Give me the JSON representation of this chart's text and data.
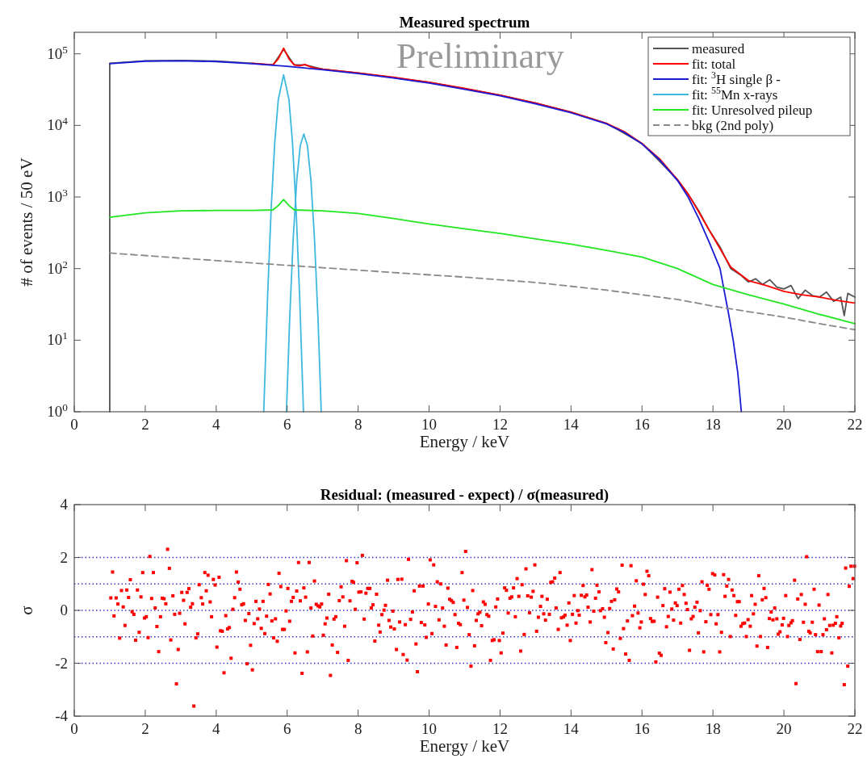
{
  "chart_data": [
    {
      "type": "line",
      "title": "Measured spectrum",
      "xlabel": "Energy / keV",
      "ylabel": "# of events / 50 eV",
      "log": "y",
      "legend": "top right",
      "xlim": [
        0,
        22
      ],
      "xticks": [
        0,
        2,
        4,
        6,
        8,
        10,
        12,
        14,
        16,
        18,
        20,
        22
      ],
      "ylim": [
        1,
        200000
      ],
      "yticks": [
        {
          "value": 1,
          "label": "10$^{0}$"
        },
        {
          "value": 10,
          "label": "10$^{1}$"
        },
        {
          "value": 100,
          "label": "10$^{2}$"
        },
        {
          "value": 1000,
          "label": "10$^{3}$"
        },
        {
          "value": 10000,
          "label": "10$^{4}$"
        },
        {
          "value": 100000,
          "label": "10$^{5}$"
        }
      ],
      "annotations": [
        "Preliminary"
      ],
      "series": [
        {
          "name": "measured",
          "color": "#555555",
          "x": [
            1,
            1,
            2,
            3,
            4,
            5,
            5.6,
            5.9,
            6.2,
            6.5,
            7,
            8,
            10,
            12,
            13,
            14,
            15,
            16,
            17,
            17.3,
            17.6,
            17.9,
            18.2,
            18.5,
            18.8,
            19,
            19.2,
            19.4,
            19.6,
            19.8,
            20,
            20.2,
            20.4,
            20.6,
            20.8,
            21,
            21.2,
            21.4,
            21.6,
            21.7,
            21.8,
            22
          ],
          "values": [
            1,
            74000,
            80000,
            81000,
            79000,
            74000,
            70000,
            115000,
            70000,
            70000,
            61000,
            54000,
            40000,
            26500,
            20500,
            15300,
            10700,
            5600,
            1750,
            1100,
            640,
            340,
            200,
            100,
            80,
            65,
            72,
            60,
            70,
            55,
            52,
            58,
            38,
            50,
            42,
            40,
            47,
            35,
            40,
            22,
            45,
            40
          ]
        },
        {
          "name": "fit: total",
          "color": "#ff0000",
          "x": [
            5,
            5.6,
            5.75,
            5.9,
            6.05,
            6.2,
            6.35,
            6.5,
            6.65,
            6.8,
            7,
            8,
            9,
            10,
            11,
            12,
            13,
            14,
            15,
            15.5,
            16,
            16.5,
            17,
            17.3,
            17.6,
            17.9,
            18.2,
            18.5,
            19,
            19.5,
            20,
            20.5,
            21,
            21.5,
            22
          ],
          "values": [
            74000,
            70000,
            85000,
            120000,
            85000,
            70000,
            68000,
            71000,
            66000,
            63000,
            61000,
            54000,
            47000,
            40000,
            33000,
            26500,
            20500,
            15300,
            10700,
            8200,
            5600,
            3400,
            1750,
            1100,
            620,
            340,
            190,
            105,
            68,
            58,
            48,
            43,
            40,
            36,
            33
          ]
        },
        {
          "name": "fit: $^{3}$H single β -",
          "color": "#1a1ad6",
          "x": [
            1,
            2,
            3,
            4,
            5,
            6,
            7,
            8,
            9,
            10,
            11,
            12,
            13,
            14,
            15,
            15.5,
            16,
            16.5,
            17,
            17.3,
            17.6,
            17.9,
            18.2,
            18.3,
            18.45,
            18.57,
            18.7,
            18.8
          ],
          "values": [
            73000,
            79000,
            80000,
            78000,
            73000,
            67000,
            60000,
            53000,
            46000,
            39000,
            32000,
            26000,
            20000,
            15000,
            10500,
            8000,
            5500,
            3300,
            1700,
            1000,
            500,
            230,
            100,
            54,
            22,
            10,
            3.5,
            1
          ]
        },
        {
          "name": "fit: $^{55}$Mn x-rays",
          "color": "#3fb8e0",
          "x": [
            5.34,
            5.45,
            5.55,
            5.65,
            5.75,
            5.9,
            6.05,
            6.15,
            6.25,
            6.35,
            6.46
          ],
          "values": [
            1,
            43,
            700,
            5750,
            23000,
            51000,
            23000,
            5750,
            700,
            43,
            1
          ]
        },
        {
          "color": "#3fb8e0",
          "x": [
            5.98,
            6.07,
            6.17,
            6.27,
            6.37,
            6.47,
            6.57,
            6.67,
            6.77,
            6.87,
            6.96
          ],
          "values": [
            1,
            19.5,
            263,
            1700,
            5250,
            7600,
            5250,
            1700,
            263,
            19.5,
            1
          ]
        },
        {
          "name": "fit: Unresolved pileup",
          "color": "#22e622",
          "x": [
            1,
            2,
            3,
            4,
            5,
            5.6,
            5.75,
            5.9,
            6.05,
            6.2,
            7,
            8,
            9,
            10,
            11,
            12,
            13,
            14,
            15,
            16,
            17,
            18,
            19,
            20,
            21,
            22
          ],
          "values": [
            520,
            600,
            640,
            650,
            650,
            660,
            760,
            920,
            760,
            660,
            640,
            590,
            500,
            420,
            360,
            310,
            260,
            220,
            180,
            145,
            100,
            60,
            43,
            32,
            23,
            17
          ]
        },
        {
          "name": "bkg (2nd poly)",
          "color": "#888888",
          "line_style": "dashed",
          "x": [
            1,
            3,
            5,
            7,
            9,
            11,
            13,
            15,
            17,
            18,
            19,
            20,
            21,
            22
          ],
          "values": [
            165,
            140,
            120,
            103,
            88,
            76,
            64,
            50,
            37,
            30,
            25,
            21,
            17,
            14
          ]
        }
      ]
    },
    {
      "type": "scatter",
      "title": "Residual: (measured - expect) / σ(measured)",
      "xlabel": "Energy / keV",
      "ylabel": "σ",
      "marker": "square",
      "xlim": [
        0,
        22
      ],
      "xticks": [
        0,
        2,
        4,
        6,
        8,
        10,
        12,
        14,
        16,
        18,
        20,
        22
      ],
      "ylim": [
        -4,
        4
      ],
      "yticks": [
        -4,
        -2,
        0,
        2,
        4
      ],
      "ref_lines": [
        {
          "axis": "y",
          "value": 2,
          "color": "#3333cc",
          "line_style": "dotted"
        },
        {
          "axis": "y",
          "value": 1,
          "color": "#3333cc",
          "line_style": "dotted"
        },
        {
          "axis": "y",
          "value": 0,
          "color": "#3333cc",
          "line_style": "dotted"
        },
        {
          "axis": "y",
          "value": -1,
          "color": "#3333cc",
          "line_style": "dotted"
        },
        {
          "axis": "y",
          "value": -2,
          "color": "#3333cc",
          "line_style": "dotted"
        }
      ],
      "series": [
        {
          "color": "#ff0000",
          "x": [
            1.03,
            1.08,
            1.12,
            1.18,
            1.23,
            1.28,
            1.33,
            1.38,
            1.43,
            1.48,
            1.53,
            1.58,
            1.63,
            1.68,
            1.73,
            1.78,
            1.83,
            1.88,
            1.93,
            1.98,
            2.03,
            2.08,
            2.13,
            2.18,
            2.23,
            2.28,
            2.33,
            2.38,
            2.43,
            2.48,
            2.53,
            2.58,
            2.63,
            2.68,
            2.72,
            2.78,
            2.83,
            2.88,
            2.93,
            2.97,
            3.03,
            3.08,
            3.12,
            3.18,
            3.23,
            3.28,
            3.33,
            3.37,
            3.43,
            3.48,
            3.52,
            3.58,
            3.62,
            3.68,
            3.72,
            3.77,
            3.83,
            3.87,
            3.92,
            3.97,
            4.02,
            4.08,
            4.12,
            4.17,
            4.22,
            4.27,
            4.32,
            4.37,
            4.42,
            4.47,
            4.52,
            4.57,
            4.62,
            4.67,
            4.72,
            4.77,
            4.82,
            4.87,
            4.92,
            4.97,
            5.02,
            5.07,
            5.12,
            5.17,
            5.22,
            5.27,
            5.32,
            5.37,
            5.42,
            5.47,
            5.52,
            5.57,
            5.62,
            5.67,
            5.72,
            5.77,
            5.82,
            5.87,
            5.92,
            5.97,
            6.02,
            6.07,
            6.12,
            6.17,
            6.22,
            6.27,
            6.32,
            6.37,
            6.42,
            6.47,
            6.52,
            6.57,
            6.62,
            6.67,
            6.72,
            6.77,
            6.82,
            6.87,
            6.92,
            6.97,
            7.02,
            7.07,
            7.12,
            7.17,
            7.22,
            7.27,
            7.32,
            7.37,
            7.42,
            7.47,
            7.52,
            7.57,
            7.62,
            7.67,
            7.72,
            7.77,
            7.83,
            7.87,
            7.92,
            7.97,
            8.02,
            8.08,
            8.12,
            8.17,
            8.22,
            8.27,
            8.33,
            8.37,
            8.42,
            8.47,
            8.52,
            8.58,
            8.62,
            8.67,
            8.73,
            8.77,
            8.83,
            8.87,
            8.92,
            8.98,
            9.02,
            9.08,
            9.12,
            9.17,
            9.23,
            9.27,
            9.33,
            9.38,
            9.42,
            9.48,
            9.53,
            9.58,
            9.63,
            9.67,
            9.73,
            9.78,
            9.83,
            9.88,
            9.92,
            9.98,
            10.03,
            10.08,
            10.13,
            10.18,
            10.23,
            10.28,
            10.33,
            10.38,
            10.43,
            10.48,
            10.53,
            10.58,
            10.63,
            10.68,
            10.73,
            10.78,
            10.83,
            10.88,
            10.93,
            10.98,
            11.03,
            11.08,
            11.13,
            11.18,
            11.23,
            11.28,
            11.33,
            11.38,
            11.43,
            11.48,
            11.53,
            11.58,
            11.63,
            11.68,
            11.73,
            11.78,
            11.83,
            11.88,
            11.93,
            11.98,
            12.03,
            12.08,
            12.13,
            12.18,
            12.23,
            12.28,
            12.33,
            12.38,
            12.43,
            12.48,
            12.53,
            12.58,
            12.62,
            12.68,
            12.73,
            12.78,
            12.83,
            12.88,
            12.93,
            12.98,
            13.03,
            13.08,
            13.14,
            13.18,
            13.23,
            13.28,
            13.33,
            13.39,
            13.43,
            13.48,
            13.54,
            13.58,
            13.64,
            13.69,
            13.73,
            13.79,
            13.83,
            13.89,
            13.94,
            13.98,
            14.04,
            14.09,
            14.14,
            14.19,
            14.23,
            14.29,
            14.34,
            14.39,
            14.44,
            14.48,
            14.54,
            14.59,
            14.64,
            14.69,
            14.73,
            14.79,
            14.83,
            14.89,
            14.94,
            14.98,
            15.04,
            15.09,
            15.14,
            15.19,
            15.23,
            15.29,
            15.34,
            15.39,
            15.44,
            15.48,
            15.54,
            15.59,
            15.64,
            15.69,
            15.73,
            15.79,
            15.84,
            15.89,
            15.94,
            15.98,
            16.04,
            16.09,
            16.14,
            16.19,
            16.24,
            16.29,
            16.34,
            16.39,
            16.44,
            16.49,
            16.54,
            16.59,
            16.64,
            16.69,
            16.74,
            16.79,
            16.84,
            16.89,
            16.94,
            16.99,
            17.04,
            17.09,
            17.14,
            17.19,
            17.24,
            17.28,
            17.34,
            17.39,
            17.44,
            17.49,
            17.55,
            17.59,
            17.64,
            17.69,
            17.74,
            17.8,
            17.84,
            17.89,
            17.94,
            17.99,
            18.05,
            18.09,
            18.14,
            18.19,
            18.24,
            18.3,
            18.34,
            18.39,
            18.44,
            18.49,
            18.54,
            18.59,
            18.64,
            18.69,
            18.74,
            18.79,
            18.84,
            18.89,
            18.94,
            18.99,
            19.05,
            19.09,
            19.14,
            19.19,
            19.24,
            19.29,
            19.34,
            19.39,
            19.44,
            19.49,
            19.54,
            19.59,
            19.64,
            19.69,
            19.74,
            19.8,
            19.84,
            19.89,
            19.95,
            19.99,
            20.05,
            20.1,
            20.14,
            20.2,
            20.24,
            20.3,
            20.34,
            20.39,
            20.45,
            20.49,
            20.55,
            20.6,
            20.64,
            20.7,
            20.74,
            20.8,
            20.85,
            20.89,
            20.95,
            20.99,
            21.05,
            21.1,
            21.14,
            21.2,
            21.24,
            21.29,
            21.35,
            21.39,
            21.45,
            21.49,
            21.55,
            21.6,
            21.64,
            21.7,
            21.74,
            21.8,
            21.84,
            21.89,
            21.95,
            21.99
          ],
          "values": [
            0.47,
            1.45,
            -0.21,
            0.47,
            0.24,
            -1.05,
            0.75,
            0.13,
            -0.57,
            0.77,
            0.49,
            1.16,
            -0.05,
            -0.15,
            -1.13,
            0.77,
            -0.83,
            0.51,
            1.43,
            -0.29,
            -0.24,
            -1.03,
            2.04,
            0.45,
            1.43,
            0.09,
            -0.61,
            -1.56,
            -0.24,
            0.46,
            0.44,
            0.25,
            2.31,
            1.59,
            -1.12,
            0.55,
            -0.15,
            -2.78,
            -1.48,
            -0.11,
            0.68,
            0.38,
            -0.51,
            0.68,
            0.82,
            0.12,
            0.25,
            -3.62,
            -1.04,
            -0.89,
            0.97,
            0.48,
            0.24,
            1.43,
            0.74,
            1.33,
            0.32,
            -0.24,
            1.17,
            0.96,
            -1.39,
            1.25,
            -0.77,
            -0.79,
            -2.36,
            -0.2,
            -0.7,
            -0.65,
            -1.81,
            0.04,
            0.48,
            1.45,
            1.07,
            0.8,
            0.21,
            0.25,
            -0.38,
            -2.02,
            -0.12,
            -1.32,
            -2.25,
            -0.5,
            0.34,
            -0.32,
            0.05,
            -0.68,
            0.34,
            -0.88,
            -0.22,
            0.98,
            0.62,
            -0.4,
            -1.04,
            -0.32,
            -1.17,
            1.4,
            0.9,
            -0.72,
            -0.72,
            -0.02,
            0.83,
            -0.41,
            0.34,
            0.49,
            -1.61,
            0.73,
            1.81,
            0.36,
            -2.38,
            0.85,
            0.5,
            -1.57,
            1.81,
            0.09,
            -0.97,
            1.11,
            0.23,
            0.17,
            0.13,
            0.24,
            -0.94,
            -0.51,
            -0.29,
            0.61,
            -2.46,
            -1.31,
            -0.33,
            -0.24,
            -1.59,
            0.37,
            0.89,
            0.51,
            -0.6,
            1.88,
            -1.89,
            0.36,
            1.1,
            1.06,
            0.04,
            1.8,
            0.69,
            0.7,
            2.08,
            -0.33,
            0.65,
            0.83,
            0.83,
            0.09,
            0.21,
            -1.16,
            0.61,
            -0.56,
            -0.82,
            -0.16,
            0.01,
            0.19,
            1.14,
            -0.38,
            -0.63,
            -0.03,
            -0.7,
            -1.48,
            1.17,
            -0.44,
            1.18,
            -1.67,
            -0.54,
            -1.88,
            1.93,
            -0.34,
            -0.06,
            0.74,
            -1.27,
            -2.32,
            0.92,
            -0.46,
            0.92,
            -0.55,
            -1.02,
            0.24,
            1.91,
            -0.88,
            1.72,
            0.15,
            1.08,
            -0.36,
            1.0,
            0.09,
            -0.6,
            -1.31,
            0.84,
            0.42,
            0.37,
            0.3,
            -0.16,
            -1.4,
            -0.49,
            -0.54,
            1.43,
            0.39,
            2.23,
            0.11,
            -0.92,
            -2.11,
            0.75,
            -1.34,
            -0.38,
            -0.13,
            -0.07,
            -0.58,
            0.32,
            0.23,
            -0.16,
            -0.22,
            -1.89,
            -1.14,
            -1.11,
            0.13,
            0.43,
            -1.14,
            -1.61,
            -0.86,
            0.85,
            0.76,
            -0.1,
            0.46,
            0.51,
            0.85,
            -0.24,
            1.2,
            0.53,
            -1.54,
            0.97,
            -0.91,
            1.57,
            0.55,
            -0.09,
            0.5,
            0.72,
            1.72,
            -0.79,
            -0.26,
            0.15,
            0.53,
            -0.13,
            -0.37,
            0.42,
            -0.15,
            1.06,
            1.08,
            1.22,
            0.09,
            -0.72,
            1.43,
            -0.28,
            -0.25,
            -0.18,
            -0.56,
            0.28,
            -1.14,
            -0.15,
            0.56,
            -0.48,
            -0.01,
            -0.18,
            0.57,
            0.94,
            0.51,
            0.58,
            0.12,
            -0.44,
            1.54,
            -0.03,
            0.46,
            0.95,
            0.7,
            -0.01,
            0.06,
            -0.26,
            -1.22,
            -0.84,
            0.07,
            0.34,
            -1.46,
            0.4,
            0.81,
            0.7,
            -1.06,
            1.71,
            -0.69,
            -1.65,
            -0.4,
            -1.89,
            1.69,
            -0.2,
            0.16,
            1.12,
            -0.1,
            -0.66,
            -0.44,
            0.99,
            0.6,
            1.48,
            1.31,
            -0.31,
            -0.42,
            -0.41,
            -1.95,
            0.5,
            -1.62,
            -1.7,
            0.18,
            0.82,
            -0.62,
            -0.23,
            0.69,
            0.05,
            -0.37,
            0.28,
            0.18,
            0.8,
            -0.48,
            0.94,
            0.6,
            0.27,
            0.03,
            -1.51,
            -0.32,
            -0.23,
            0.12,
            0.31,
            -0.85,
            -0.01,
            1.08,
            -1.57,
            -0.43,
            0.95,
            0.8,
            -0.16,
            1.39,
            1.34,
            -0.51,
            -0.16,
            -1.57,
            -0.83,
            1.35,
            0.53,
            0.92,
            1.17,
            -0.99,
            0.77,
            0.56,
            -0.19,
            0.33,
            0.33,
            -0.6,
            -0.5,
            -0.48,
            -0.99,
            -0.35,
            -0.6,
            0.56,
            -0.13,
            0.23,
            -1.35,
            1.31,
            -0.99,
            0.4,
            0.83,
            0.48,
            -1.4,
            -0.31,
            -0.06,
            -0.36,
            0.09,
            -0.32,
            -0.9,
            -0.81,
            -0.55,
            -0.3,
            0.56,
            -0.99,
            -0.57,
            -0.47,
            -0.39,
            1.14,
            -2.77,
            0.43,
            -1.1,
            0.6,
            -0.45,
            0.23,
            2.03,
            -0.79,
            -0.85,
            -0.45,
            0.8,
            -0.92,
            -1.56,
            0.2,
            -1.56,
            -0.92,
            -0.32,
            -0.73,
            0.6,
            -0.57,
            -1.61,
            -0.56,
            -0.49,
            -0.24,
            -1.04,
            -0.59,
            -0.49,
            -2.81,
            1.6,
            -2.11,
            0.91,
            1.67,
            1.2,
            1.67
          ]
        }
      ]
    }
  ]
}
